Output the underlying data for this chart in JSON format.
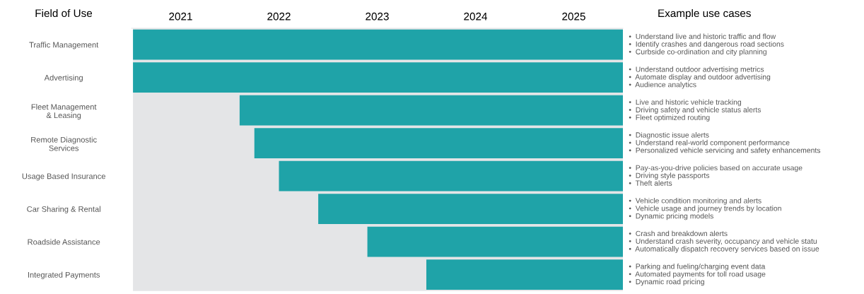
{
  "chart_data": {
    "type": "bar",
    "orientation": "horizontal",
    "ylabel": "Field of Use",
    "categories": [
      "Traffic Management",
      "Advertising",
      "Fleet Management\n& Leasing",
      "Remote Diagnostic\nServices",
      "Usage Based Insurance",
      "Car Sharing & Rental",
      "Roadside Assistance",
      "Integrated Payments"
    ],
    "base": [
      2020.5,
      2020.5,
      2021.6,
      2021.75,
      2022.0,
      2022.4,
      2022.9,
      2023.5
    ],
    "values": [
      5.0,
      5.0,
      3.9,
      3.75,
      3.5,
      3.1,
      2.6,
      2.0
    ],
    "color": "#1fa3a8",
    "xlim": [
      2020.5,
      2025.5
    ],
    "xticks": [
      2021,
      2022,
      2023,
      2024,
      2025
    ],
    "annotations": [
      "Example use cases",
      "•  Understand live and historic traffic and flow\n•  Identify crashes and dangerous road sections\n•  Curbside co-ordination and city planning",
      "•  Understand outdoor advertising metrics\n•  Automate display and outdoor advertising\n•  Audience analytics",
      "•  Live and historic vehicle tracking\n•  Driving safety and vehicle status alerts\n•  Fleet optimized routing",
      "•  Diagnostic issue alerts\n•  Understand real-world component performance\n•  Personalized vehicle servicing and safety enhancements",
      "•  Pay-as-you-drive policies based on accurate usage\n•  Driving style passports\n•  Theft alerts",
      "•  Vehicle condition monitoring and alerts\n•  Vehicle usage and journey trends by location\n•  Dynamic pricing models",
      "•  Crash and breakdown alerts\n•  Understand crash severity, occupancy and vehicle statu\n•  Automatically dispatch recovery services based on issue",
      "•  Parking and fueling/charging event data\n•  Automated payments for toll road usage\n•  Dynamic road pricing"
    ]
  }
}
